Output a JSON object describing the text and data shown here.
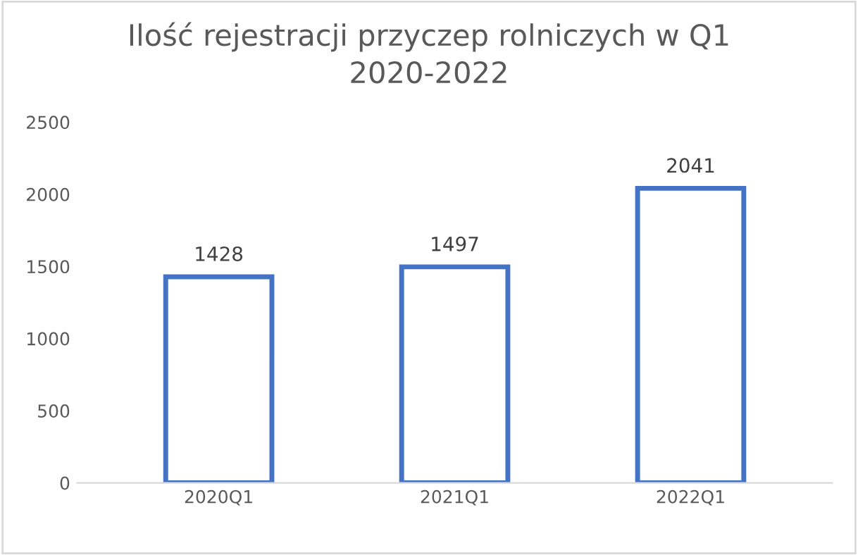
{
  "chart_data": {
    "type": "bar",
    "title": "Ilość rejestracji przyczep rolniczych w Q1\n2020-2022",
    "categories": [
      "2020Q1",
      "2021Q1",
      "2022Q1"
    ],
    "series": [
      {
        "color": "#4472c4",
        "values": [
          1428,
          1497,
          2041
        ]
      }
    ],
    "ylim": [
      0,
      2500
    ],
    "yticks": [
      0,
      500,
      1000,
      1500,
      2000,
      2500
    ],
    "data_labels": true,
    "grid": false,
    "legend": false
  }
}
